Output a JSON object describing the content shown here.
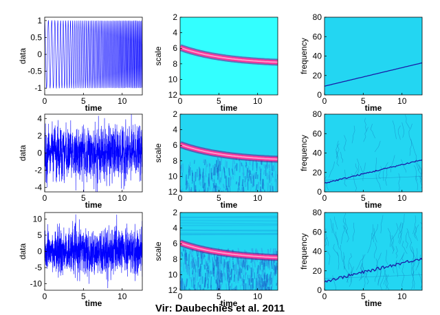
{
  "caption": "Vir: Daubechies et al. 2011",
  "colors": {
    "signal": "#0000ff",
    "heat_background": "#33ffff",
    "heat_background_noisy": "#23d6f2",
    "ridge": "#ff3399",
    "ridge_dark": "#800080",
    "tf_line": "#1a1aa6"
  },
  "chart_data": [
    {
      "type": "line",
      "row": 1,
      "xlabel": "time",
      "ylabel": "data",
      "xlim": [
        0,
        12.6
      ],
      "ylim": [
        -1.2,
        1.1
      ],
      "xticks": [
        "0",
        "5",
        "10"
      ],
      "yticks": [
        "-1",
        "-0.5",
        "0",
        "0.5",
        "1"
      ],
      "series": [
        {
          "signal": "chirp",
          "amplitude": 1,
          "noise_std": 0,
          "frequency_start": 9,
          "frequency_end": 33
        }
      ]
    },
    {
      "type": "heatmap",
      "row": 1,
      "xlabel": "time",
      "ylabel": "scale",
      "xlim": [
        0,
        12.6
      ],
      "ylim": [
        2,
        12
      ],
      "xticks": [
        "0",
        "5",
        "10"
      ],
      "yticks": [
        "2",
        "4",
        "6",
        "8",
        "10",
        "12"
      ],
      "ridge": {
        "time": [
          0,
          12.6
        ],
        "scale": [
          5.9,
          7.8
        ]
      },
      "noise_level": 0
    },
    {
      "type": "line",
      "row": 1,
      "xlabel": "time",
      "ylabel": "frequency",
      "xlim": [
        0,
        12.6
      ],
      "ylim": [
        0,
        80
      ],
      "xticks": [
        "0",
        "5",
        "10"
      ],
      "yticks": [
        "0",
        "20",
        "40",
        "60",
        "80"
      ],
      "series": [
        {
          "time": [
            0,
            12.6
          ],
          "frequency": [
            9,
            33
          ]
        }
      ],
      "noise_level": 0
    },
    {
      "type": "line",
      "row": 2,
      "xlabel": "time",
      "ylabel": "data",
      "xlim": [
        0,
        12.6
      ],
      "ylim": [
        -4.5,
        4.5
      ],
      "xticks": [
        "0",
        "5",
        "10"
      ],
      "yticks": [
        "-4",
        "-2",
        "0",
        "2",
        "4"
      ],
      "series": [
        {
          "signal": "chirp+noise",
          "amplitude": 1,
          "noise_std": 1.3,
          "frequency_start": 9,
          "frequency_end": 33
        }
      ]
    },
    {
      "type": "heatmap",
      "row": 2,
      "xlabel": "time",
      "ylabel": "scale",
      "xlim": [
        0,
        12.6
      ],
      "ylim": [
        2,
        12
      ],
      "xticks": [
        "0",
        "5",
        "10"
      ],
      "yticks": [
        "2",
        "4",
        "6",
        "8",
        "10",
        "12"
      ],
      "ridge": {
        "time": [
          0,
          12.6
        ],
        "scale": [
          5.9,
          7.8
        ]
      },
      "noise_level": 1
    },
    {
      "type": "line",
      "row": 2,
      "xlabel": "time",
      "ylabel": "frequency",
      "xlim": [
        0,
        12.6
      ],
      "ylim": [
        0,
        80
      ],
      "xticks": [
        "0",
        "5",
        "10"
      ],
      "yticks": [
        "0",
        "20",
        "40",
        "60",
        "80"
      ],
      "series": [
        {
          "time": [
            0,
            12.6
          ],
          "frequency": [
            9,
            33
          ]
        }
      ],
      "noise_level": 1
    },
    {
      "type": "line",
      "row": 3,
      "xlabel": "time",
      "ylabel": "data",
      "xlim": [
        0,
        12.6
      ],
      "ylim": [
        -12,
        12
      ],
      "xticks": [
        "0",
        "5",
        "10"
      ],
      "yticks": [
        "-10",
        "-5",
        "0",
        "5",
        "10"
      ],
      "series": [
        {
          "signal": "chirp+noise",
          "amplitude": 1,
          "noise_std": 3.2,
          "frequency_start": 9,
          "frequency_end": 33
        }
      ]
    },
    {
      "type": "heatmap",
      "row": 3,
      "xlabel": "time",
      "ylabel": "scale",
      "xlim": [
        0,
        12.6
      ],
      "ylim": [
        2,
        12
      ],
      "xticks": [
        "0",
        "5",
        "10"
      ],
      "yticks": [
        "2",
        "4",
        "6",
        "8",
        "10",
        "12"
      ],
      "ridge": {
        "time": [
          0,
          12.6
        ],
        "scale": [
          5.9,
          7.8
        ]
      },
      "noise_level": 2
    },
    {
      "type": "line",
      "row": 3,
      "xlabel": "time",
      "ylabel": "frequency",
      "xlim": [
        0,
        12.6
      ],
      "ylim": [
        0,
        80
      ],
      "xticks": [
        "0",
        "5",
        "10"
      ],
      "yticks": [
        "0",
        "20",
        "40",
        "60",
        "80"
      ],
      "series": [
        {
          "time": [
            0,
            12.6
          ],
          "frequency": [
            9,
            33
          ]
        }
      ],
      "noise_level": 2
    }
  ]
}
